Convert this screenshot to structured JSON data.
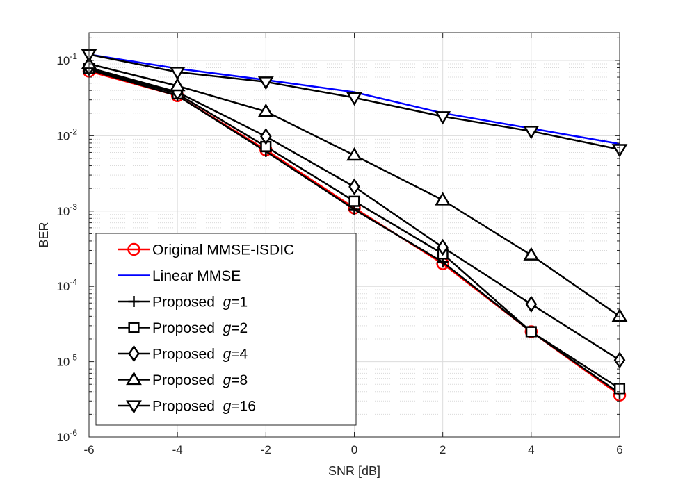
{
  "chart_data": {
    "type": "line",
    "xlabel": "SNR [dB]",
    "ylabel": "BER",
    "x": [
      -6,
      -4,
      -2,
      0,
      2,
      4,
      6
    ],
    "xlim": [
      -6,
      6
    ],
    "ylim": [
      1e-06,
      0.15
    ],
    "yscale": "log",
    "grid": true,
    "minor_grid": true,
    "x_ticks": [
      "-6",
      "-4",
      "-2",
      "0",
      "2",
      "4",
      "6"
    ],
    "y_ticks": [
      {
        "base": "10",
        "exp": "-6"
      },
      {
        "base": "10",
        "exp": "-5"
      },
      {
        "base": "10",
        "exp": "-4"
      },
      {
        "base": "10",
        "exp": "-3"
      },
      {
        "base": "10",
        "exp": "-2"
      },
      {
        "base": "10",
        "exp": "-1"
      }
    ],
    "legend_position": "bottom-left",
    "series": [
      {
        "name": "Original MMSE-ISDIC",
        "prefix": "Original MMSE-ISDIC",
        "g": "",
        "suffix": "",
        "color": "#ff0000",
        "marker": "circle",
        "values": [
          0.072,
          0.034,
          0.0065,
          0.0011,
          0.0002,
          2.5e-05,
          3.6e-06
        ]
      },
      {
        "name": "Linear MMSE",
        "prefix": "Linear MMSE",
        "g": "",
        "suffix": "",
        "color": "#0000ff",
        "marker": "none",
        "values": [
          0.12,
          0.078,
          0.055,
          0.038,
          0.02,
          0.0125,
          0.0078
        ]
      },
      {
        "name": "Proposed g=1",
        "prefix": "Proposed  ",
        "g": "g",
        "suffix": "=1",
        "color": "#000000",
        "marker": "plus",
        "values": [
          0.075,
          0.034,
          0.0062,
          0.00105,
          0.00021,
          2.5e-05,
          3.8e-06
        ]
      },
      {
        "name": "Proposed g=2",
        "prefix": "Proposed  ",
        "g": "g",
        "suffix": "=2",
        "color": "#000000",
        "marker": "square",
        "values": [
          0.078,
          0.036,
          0.0072,
          0.00135,
          0.00027,
          2.5e-05,
          4.4e-06
        ]
      },
      {
        "name": "Proposed g=4",
        "prefix": "Proposed  ",
        "g": "g",
        "suffix": "=4",
        "color": "#000000",
        "marker": "diamond",
        "values": [
          0.08,
          0.038,
          0.0098,
          0.0021,
          0.00033,
          5.8e-05,
          1.05e-05
        ]
      },
      {
        "name": "Proposed g=8",
        "prefix": "Proposed  ",
        "g": "g",
        "suffix": "=8",
        "color": "#000000",
        "marker": "triangle-up",
        "values": [
          0.09,
          0.046,
          0.021,
          0.0055,
          0.0014,
          0.00026,
          4e-05
        ]
      },
      {
        "name": "Proposed g=16",
        "prefix": "Proposed  ",
        "g": "g",
        "suffix": "=16",
        "color": "#000000",
        "marker": "triangle-down",
        "values": [
          0.12,
          0.07,
          0.052,
          0.032,
          0.018,
          0.0115,
          0.0066
        ]
      }
    ]
  }
}
